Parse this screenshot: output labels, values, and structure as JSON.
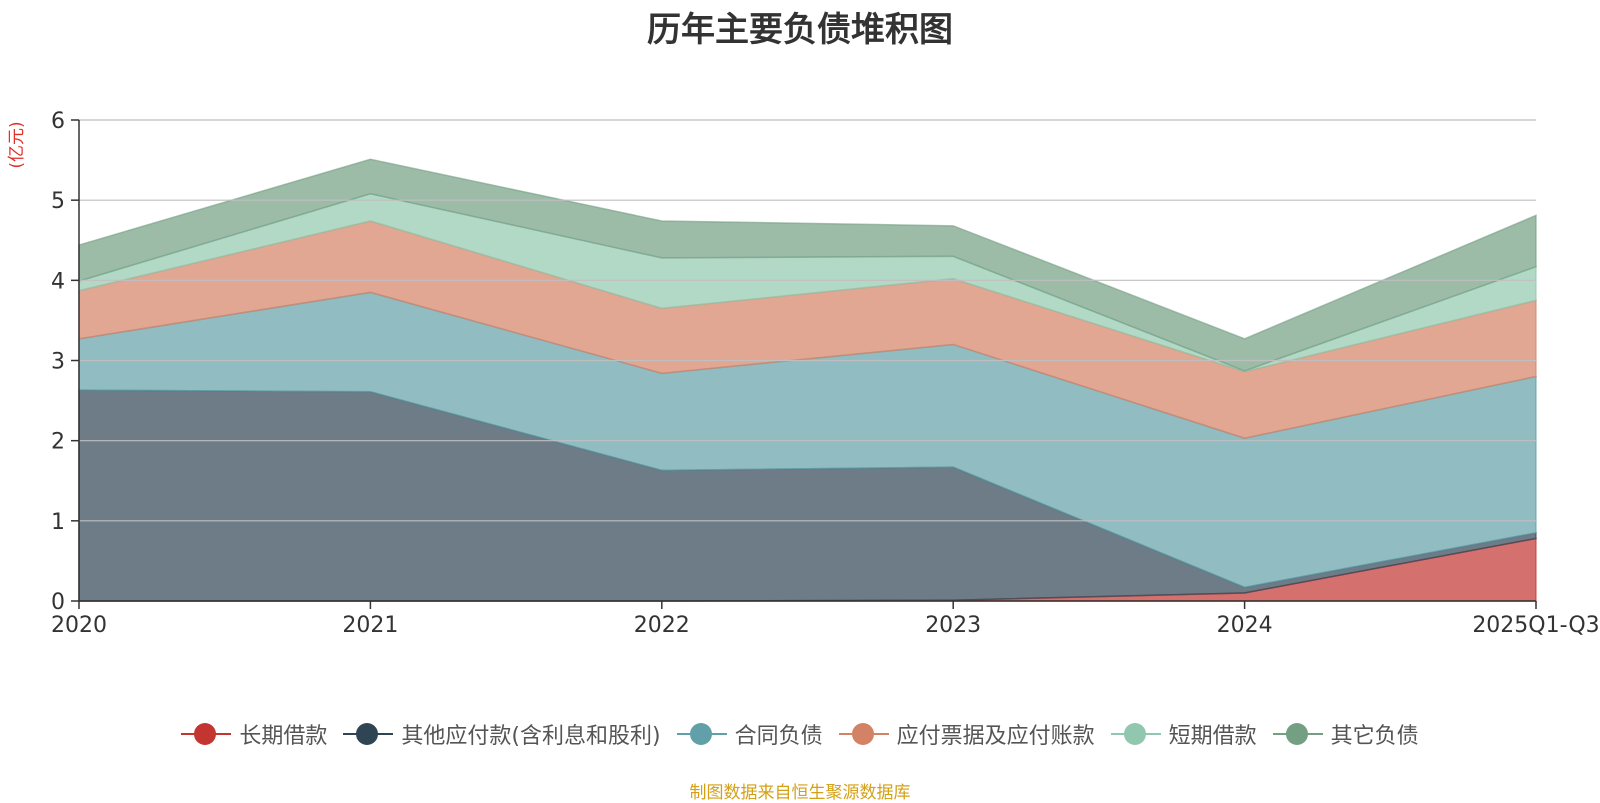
{
  "chart_data": {
    "type": "area",
    "stacked": true,
    "title": "历年主要负债堆积图",
    "unit_label": "(亿元)",
    "categories": [
      "2020",
      "2021",
      "2022",
      "2023",
      "2024",
      "2025Q1-Q3"
    ],
    "ylim": [
      0,
      6
    ],
    "yticks": [
      0,
      1,
      2,
      3,
      4,
      5,
      6
    ],
    "grid": true,
    "legend_position": "bottom",
    "series": [
      {
        "name": "长期借款",
        "color": "#c23531",
        "values": [
          0,
          0,
          0,
          0.01,
          0.1,
          0.78
        ]
      },
      {
        "name": "其他应付款(含利息和股利)",
        "color": "#2f4554",
        "values": [
          2.63,
          2.61,
          1.63,
          1.66,
          0.07,
          0.07
        ]
      },
      {
        "name": "合同负债",
        "color": "#61a0a8",
        "values": [
          0.64,
          1.24,
          1.21,
          1.53,
          1.86,
          1.95
        ]
      },
      {
        "name": "应付票据及应付账款",
        "color": "#d48265",
        "values": [
          0.6,
          0.89,
          0.81,
          0.82,
          0.83,
          0.95
        ]
      },
      {
        "name": "短期借款",
        "color": "#91c7ae",
        "values": [
          0.12,
          0.34,
          0.63,
          0.28,
          0.01,
          0.42
        ]
      },
      {
        "name": "其它负债",
        "color": "#749f83",
        "values": [
          0.45,
          0.43,
          0.46,
          0.38,
          0.4,
          0.64
        ]
      }
    ]
  },
  "footer": {
    "source": "制图数据来自恒生聚源数据库"
  }
}
